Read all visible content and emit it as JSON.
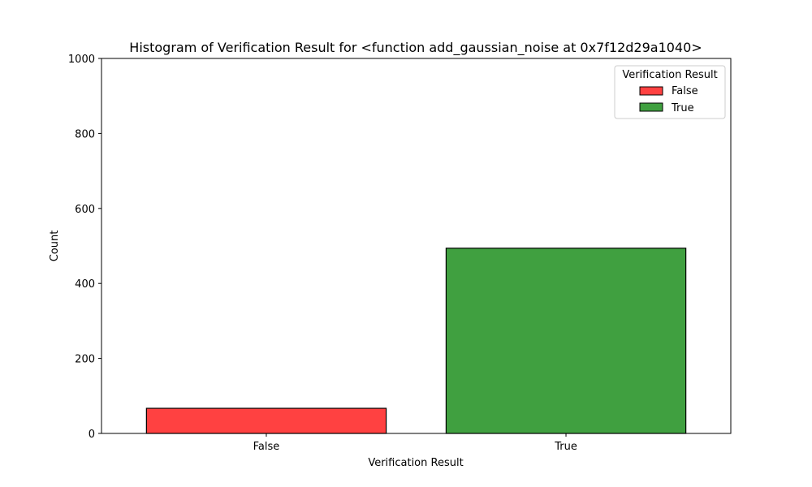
{
  "chart_data": {
    "type": "bar",
    "title": "Histogram of Verification Result for <function add_gaussian_noise at 0x7f12d29a1040>",
    "xlabel": "Verification Result",
    "ylabel": "Count",
    "categories": [
      "False",
      "True"
    ],
    "values": [
      67,
      494
    ],
    "colors": [
      "#ff4141",
      "#40a040"
    ],
    "ylim": [
      0,
      1000
    ],
    "yticks": [
      0,
      200,
      400,
      600,
      800,
      1000
    ],
    "grid": false,
    "legend": {
      "title": "Verification Result",
      "placement": "top-right",
      "entries": [
        {
          "label": "False",
          "color": "#ff4141"
        },
        {
          "label": "True",
          "color": "#40a040"
        }
      ]
    }
  }
}
